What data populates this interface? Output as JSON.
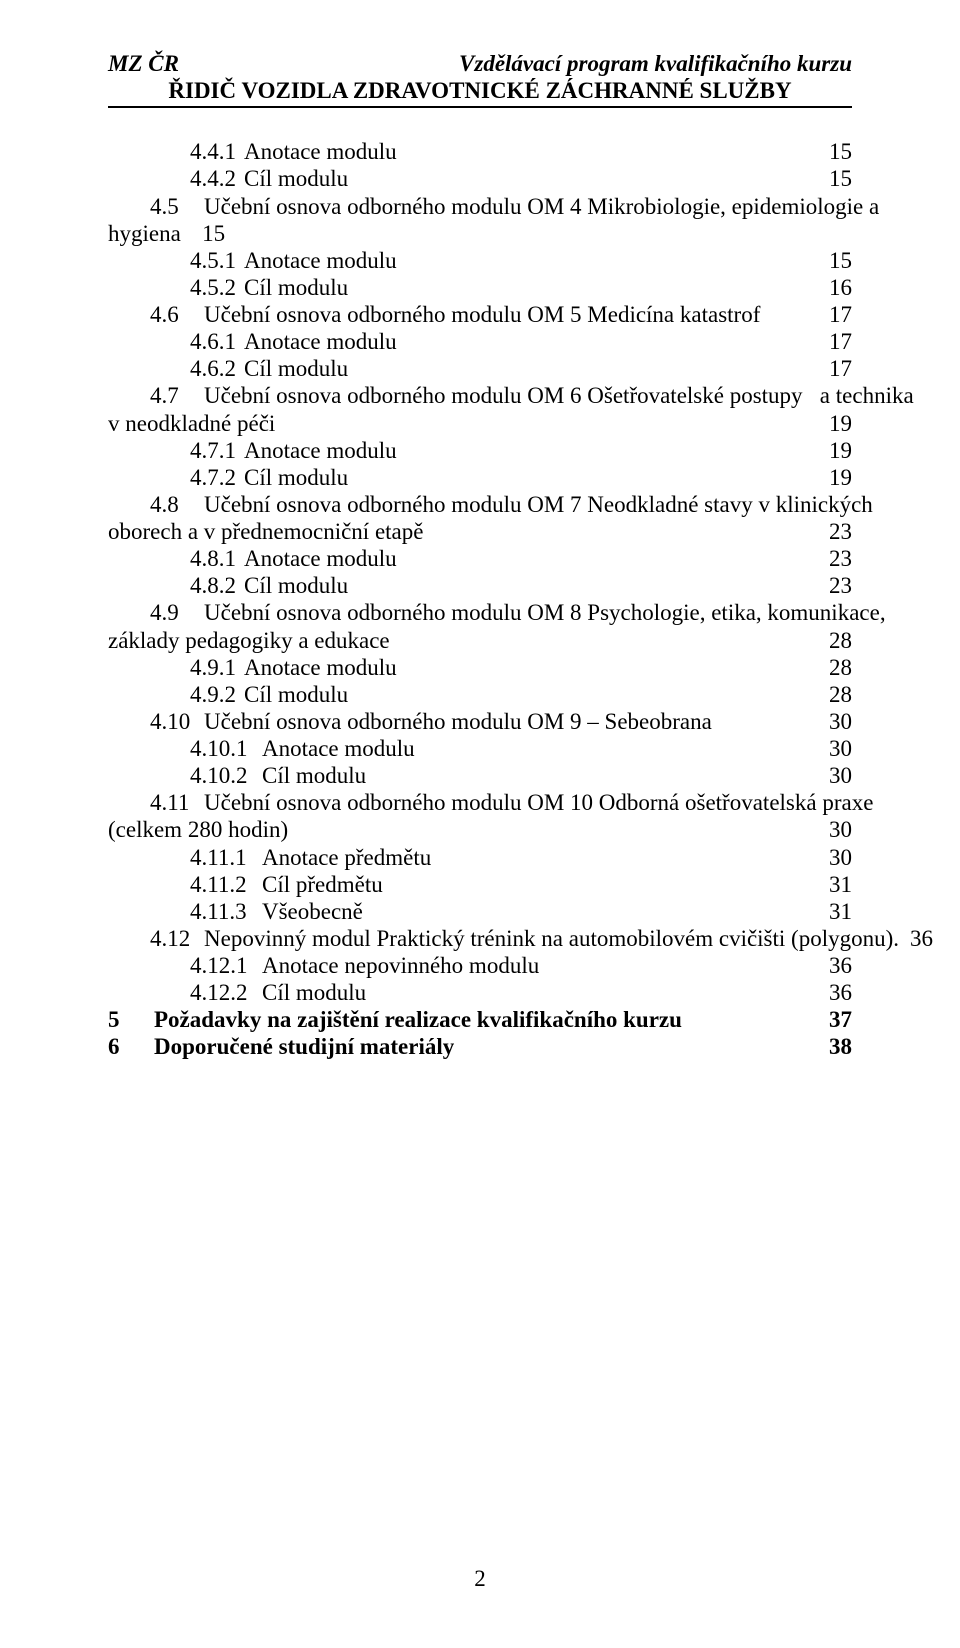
{
  "header": {
    "left": "MZ ČR",
    "right": "Vzdělávací program kvalifikačního kurzu",
    "line2": "ŘIDIČ VOZIDLA ZDRAVOTNICKÉ ZÁCHRANNÉ SLUŽBY"
  },
  "toc": [
    {
      "indent": 1,
      "num": "4.4.1",
      "label": "Anotace modulu",
      "page": "15"
    },
    {
      "indent": 1,
      "num": "4.4.2",
      "label": "Cíl modulu",
      "page": "15"
    },
    {
      "type": "wrap2",
      "indent": 0,
      "num": "4.5",
      "label_a": "Učební osnova odborného modulu OM 4 Mikrobiologie, epidemiologie a",
      "label_b": "hygiena",
      "trail": "15",
      "page": ""
    },
    {
      "indent": 1,
      "num": "4.5.1",
      "label": "Anotace modulu",
      "page": "15"
    },
    {
      "indent": 1,
      "num": "4.5.2",
      "label": "Cíl modulu",
      "page": "16"
    },
    {
      "indent": 0,
      "num": "4.6",
      "label": "Učební osnova odborného modulu OM 5 Medicína katastrof",
      "page": "17"
    },
    {
      "indent": 1,
      "num": "4.6.1",
      "label": "Anotace modulu",
      "page": "17"
    },
    {
      "indent": 1,
      "num": "4.6.2",
      "label": "Cíl modulu",
      "page": "17"
    },
    {
      "type": "wrap2",
      "indent": 0,
      "num": "4.7",
      "label_a": "Učební osnova odborného modulu OM 6 Ošetřovatelské postupy   a technika",
      "label_b": "v neodkladné péči",
      "page": "19"
    },
    {
      "indent": 1,
      "num": "4.7.1",
      "label": "Anotace modulu",
      "page": "19"
    },
    {
      "indent": 1,
      "num": "4.7.2",
      "label": "Cíl modulu",
      "page": "19"
    },
    {
      "type": "wrap2",
      "indent": 0,
      "num": "4.8",
      "label_a": "Učební osnova odborného modulu OM 7 Neodkladné stavy v klinických",
      "label_b": "oborech a v přednemocniční etapě",
      "page": "23"
    },
    {
      "indent": 1,
      "num": "4.8.1",
      "label": "Anotace modulu",
      "page": "23"
    },
    {
      "indent": 1,
      "num": "4.8.2",
      "label": "Cíl modulu",
      "page": "23"
    },
    {
      "type": "wrap2",
      "indent": 0,
      "num": "4.9",
      "label_a": "Učební osnova odborného modulu OM 8 Psychologie, etika, komunikace,",
      "label_b": "základy pedagogiky a edukace",
      "page": "28"
    },
    {
      "indent": 1,
      "num": "4.9.1",
      "label": "Anotace modulu",
      "page": "28"
    },
    {
      "indent": 1,
      "num": "4.9.2",
      "label": "Cíl modulu",
      "page": "28"
    },
    {
      "indent": 0,
      "num": "4.10",
      "label": "Učební osnova odborného modulu OM 9 – Sebeobrana",
      "page": "30"
    },
    {
      "indent": 1,
      "num": "4.10.1",
      "numw": 2,
      "label": "Anotace modulu",
      "page": "30"
    },
    {
      "indent": 1,
      "num": "4.10.2",
      "numw": 2,
      "label": "Cíl modulu",
      "page": "30"
    },
    {
      "type": "wrap2",
      "indent": 0,
      "num": "4.11",
      "label_a": "Učební osnova odborného modulu OM 10 Odborná ošetřovatelská praxe",
      "label_b": "(celkem 280 hodin)",
      "page": "30"
    },
    {
      "indent": 1,
      "num": "4.11.1",
      "numw": 2,
      "label": "Anotace předmětu",
      "page": "30"
    },
    {
      "indent": 1,
      "num": "4.11.2",
      "numw": 2,
      "label": "Cíl předmětu",
      "page": "31"
    },
    {
      "indent": 1,
      "num": "4.11.3",
      "numw": 2,
      "label": "Všeobecně",
      "page": "31"
    },
    {
      "indent": 0,
      "num": "4.12",
      "label": "Nepovinný modul Praktický trénink na automobilovém cvičišti (polygonu).",
      "leader": false,
      "page": "36"
    },
    {
      "indent": 1,
      "num": "4.12.1",
      "numw": 2,
      "label": "Anotace nepovinného modulu",
      "page": "36"
    },
    {
      "indent": 1,
      "num": "4.12.2",
      "numw": 2,
      "label": "Cíl modulu",
      "page": "36"
    },
    {
      "indent": 0,
      "top": true,
      "bold": true,
      "num": "5",
      "label": "Požadavky na zajištění realizace kvalifikačního kurzu",
      "page": "37"
    },
    {
      "indent": 0,
      "top": true,
      "bold": true,
      "num": "6",
      "label": "Doporučené studijní materiály",
      "page": "38"
    }
  ],
  "pageNumber": "2"
}
